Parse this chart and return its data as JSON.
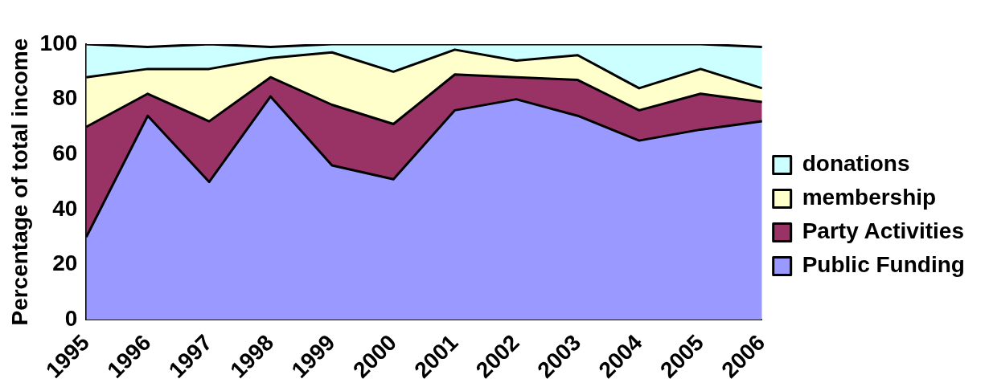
{
  "chart_data": {
    "type": "area",
    "stacked": true,
    "ylabel": "Percentage of total income",
    "categories": [
      "1995",
      "1996",
      "1997",
      "1998",
      "1999",
      "2000",
      "2001",
      "2002",
      "2003",
      "2004",
      "2005",
      "2006"
    ],
    "series": [
      {
        "name": "Public Funding",
        "color": "#9999ff",
        "values": [
          30,
          74,
          50,
          81,
          56,
          51,
          76,
          80,
          74,
          65,
          69,
          72
        ]
      },
      {
        "name": "Party Activities",
        "color": "#993366",
        "values": [
          40,
          8,
          22,
          7,
          22,
          20,
          13,
          8,
          13,
          11,
          13,
          7
        ]
      },
      {
        "name": "membership",
        "color": "#ffffcc",
        "values": [
          18,
          9,
          19,
          7,
          19,
          19,
          9,
          6,
          9,
          8,
          9,
          5
        ]
      },
      {
        "name": "donations",
        "color": "#ccffff",
        "values": [
          12,
          8,
          9,
          4,
          3,
          10,
          2,
          6,
          4,
          16,
          9,
          15
        ]
      }
    ],
    "ylim": [
      0,
      100
    ],
    "yticks": [
      0,
      20,
      40,
      60,
      80,
      100
    ],
    "grid": false,
    "legend": "right"
  }
}
